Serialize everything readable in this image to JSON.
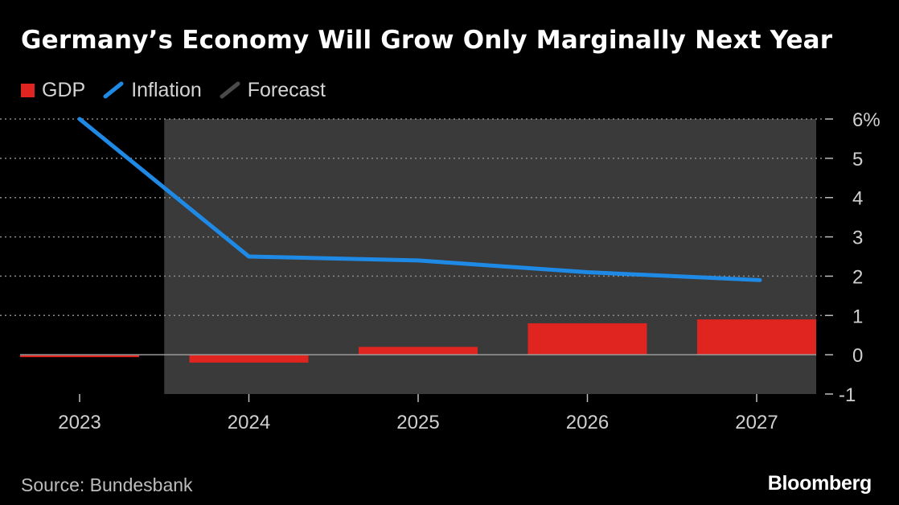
{
  "header": {
    "title": "Germany’s Economy Will Grow Only Marginally Next Year"
  },
  "legend": [
    {
      "label": "GDP",
      "color": "#e0241f",
      "icon": "red-square-swatch-icon"
    },
    {
      "label": "Inflation",
      "color": "#1f8ae6",
      "icon": "blue-line-swatch-icon"
    },
    {
      "label": "Forecast",
      "color": "#3a3a3a",
      "icon": "gray-line-swatch-icon"
    }
  ],
  "footer": {
    "source": "Source: Bundesbank",
    "brand": "Bloomberg"
  },
  "chart_data": {
    "type": "bar",
    "categories": [
      "2023",
      "2024",
      "2025",
      "2026",
      "2027"
    ],
    "series": [
      {
        "name": "GDP",
        "type": "bar",
        "color": "#e0241f",
        "values": [
          -0.05,
          -0.2,
          0.2,
          0.8,
          0.9
        ]
      },
      {
        "name": "Inflation",
        "type": "line",
        "color": "#1f8ae6",
        "values": [
          6.0,
          2.5,
          2.4,
          2.1,
          1.9
        ]
      }
    ],
    "forecast_shading": {
      "label": "Forecast",
      "from": "2024",
      "to": "2027",
      "color": "#3a3a3a"
    },
    "y_axis": {
      "side": "right",
      "range": [
        -1,
        6
      ],
      "ticks": [
        {
          "value": 6,
          "label": "6%"
        },
        {
          "value": 5,
          "label": "5"
        },
        {
          "value": 4,
          "label": "4"
        },
        {
          "value": 3,
          "label": "3"
        },
        {
          "value": 2,
          "label": "2"
        },
        {
          "value": 1,
          "label": "1"
        },
        {
          "value": 0,
          "label": "0"
        },
        {
          "value": -1,
          "label": "-1"
        }
      ]
    },
    "grid": "dotted-horizontal",
    "legend_position": "top-left"
  }
}
